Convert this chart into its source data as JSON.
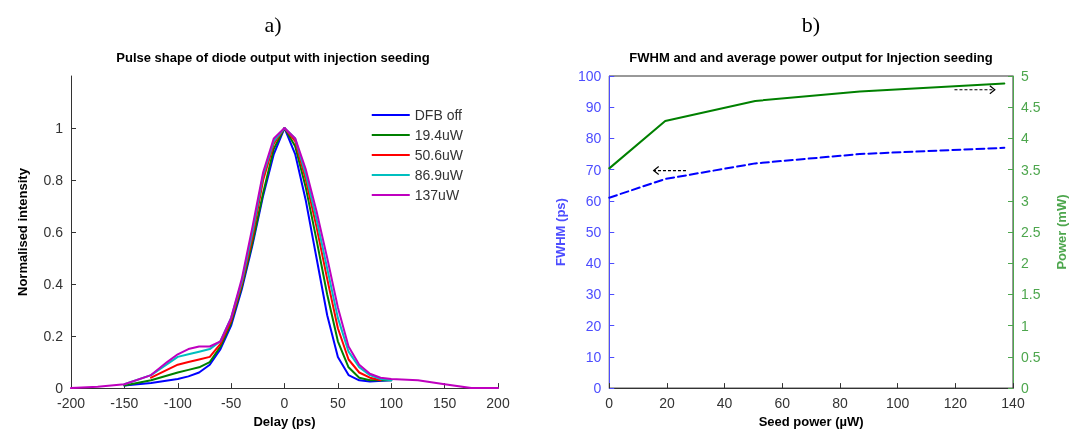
{
  "chart_data": [
    {
      "type": "line",
      "title": "a)",
      "subtitle": "Pulse shape of diode output with injection seeding",
      "xlabel": "Delay (ps)",
      "ylabel": "Normalised intensity",
      "xlim": [
        -200,
        200
      ],
      "xticks": [
        -200,
        -150,
        -100,
        -50,
        0,
        50,
        100,
        150,
        200
      ],
      "ylim": [
        0,
        1.2
      ],
      "yticks": [
        0,
        0.2,
        0.4,
        0.6,
        0.8,
        1
      ],
      "grid": false,
      "legend": "top right",
      "marker": "none",
      "series": [
        {
          "name": "DFB off",
          "color": "#0000ff",
          "x": [
            -150,
            -125,
            -100,
            -90,
            -80,
            -70,
            -60,
            -50,
            -40,
            -30,
            -20,
            -10,
            0,
            10,
            20,
            30,
            40,
            50,
            60,
            70,
            80,
            100
          ],
          "values": [
            0.01,
            0.02,
            0.035,
            0.045,
            0.06,
            0.09,
            0.15,
            0.24,
            0.38,
            0.55,
            0.74,
            0.9,
            1,
            0.9,
            0.72,
            0.5,
            0.28,
            0.12,
            0.05,
            0.03,
            0.025,
            0.03
          ]
        },
        {
          "name": "19.4uW",
          "color": "#008000",
          "x": [
            -150,
            -125,
            -100,
            -90,
            -80,
            -70,
            -60,
            -50,
            -40,
            -30,
            -20,
            -10,
            0,
            10,
            20,
            30,
            40,
            50,
            60,
            70,
            80,
            100
          ],
          "values": [
            0.01,
            0.03,
            0.06,
            0.07,
            0.08,
            0.1,
            0.16,
            0.25,
            0.39,
            0.56,
            0.75,
            0.92,
            1,
            0.93,
            0.77,
            0.57,
            0.36,
            0.18,
            0.08,
            0.04,
            0.03,
            0.03
          ]
        },
        {
          "name": "50.6uW",
          "color": "#ff0000",
          "x": [
            -125,
            -100,
            -90,
            -80,
            -70,
            -60,
            -50,
            -40,
            -30,
            -20,
            -10,
            0,
            10,
            20,
            30,
            40,
            50,
            60,
            70,
            80,
            90
          ],
          "values": [
            0.04,
            0.09,
            0.1,
            0.11,
            0.12,
            0.17,
            0.26,
            0.4,
            0.58,
            0.8,
            0.94,
            1,
            0.95,
            0.8,
            0.62,
            0.42,
            0.23,
            0.11,
            0.06,
            0.04,
            0.03
          ]
        },
        {
          "name": "86.9uW",
          "color": "#00bfbf",
          "x": [
            -150,
            -125,
            -100,
            -90,
            -80,
            -70,
            -60,
            -50,
            -40,
            -30,
            -20,
            -10,
            0,
            10,
            20,
            30,
            40,
            50,
            60,
            70,
            80,
            90,
            100
          ],
          "values": [
            0.015,
            0.05,
            0.12,
            0.13,
            0.14,
            0.15,
            0.18,
            0.27,
            0.41,
            0.6,
            0.82,
            0.95,
            1,
            0.96,
            0.82,
            0.65,
            0.46,
            0.27,
            0.14,
            0.08,
            0.05,
            0.035,
            0.03
          ]
        },
        {
          "name": "137uW",
          "color": "#bf00bf",
          "x": [
            -200,
            -175,
            -150,
            -125,
            -110,
            -100,
            -90,
            -80,
            -70,
            -60,
            -50,
            -40,
            -30,
            -20,
            -10,
            0,
            10,
            20,
            30,
            40,
            50,
            60,
            70,
            80,
            90,
            100,
            125,
            150,
            175,
            200
          ],
          "values": [
            0,
            0.005,
            0.015,
            0.05,
            0.1,
            0.13,
            0.15,
            0.16,
            0.16,
            0.18,
            0.27,
            0.42,
            0.62,
            0.83,
            0.96,
            1,
            0.96,
            0.84,
            0.68,
            0.5,
            0.31,
            0.16,
            0.09,
            0.055,
            0.04,
            0.035,
            0.03,
            0.015,
            0,
            0
          ]
        }
      ]
    },
    {
      "type": "line",
      "title": "b)",
      "subtitle": "FWHM and and average power output for Injection seeding",
      "xlabel": "Seed power (µW)",
      "ylabel": "FWHM (ps)",
      "y2label": "Power (mW)",
      "xlim": [
        0,
        140
      ],
      "xticks": [
        0,
        20,
        40,
        60,
        80,
        100,
        120,
        140
      ],
      "ylim": [
        0,
        100
      ],
      "yticks": [
        0,
        10,
        20,
        30,
        40,
        50,
        60,
        70,
        80,
        90,
        100
      ],
      "y2lim": [
        0,
        5
      ],
      "y2ticks": [
        0,
        0.5,
        1,
        1.5,
        2,
        2.5,
        3,
        3.5,
        4,
        4.5,
        5
      ],
      "grid": false,
      "legend": false,
      "marker": "none",
      "series": [
        {
          "color": "#0000ff",
          "line_style": "dashed",
          "x": [
            0,
            19.4,
            50.6,
            86.9,
            137
          ],
          "values": [
            61,
            67,
            72,
            75,
            77
          ]
        },
        {
          "color": "#008000",
          "line_style": "solid",
          "axis": "y2",
          "x": [
            0,
            19.4,
            50.6,
            86.9,
            137
          ],
          "values": [
            3.52,
            4.28,
            4.6,
            4.75,
            4.88
          ]
        }
      ]
    }
  ]
}
